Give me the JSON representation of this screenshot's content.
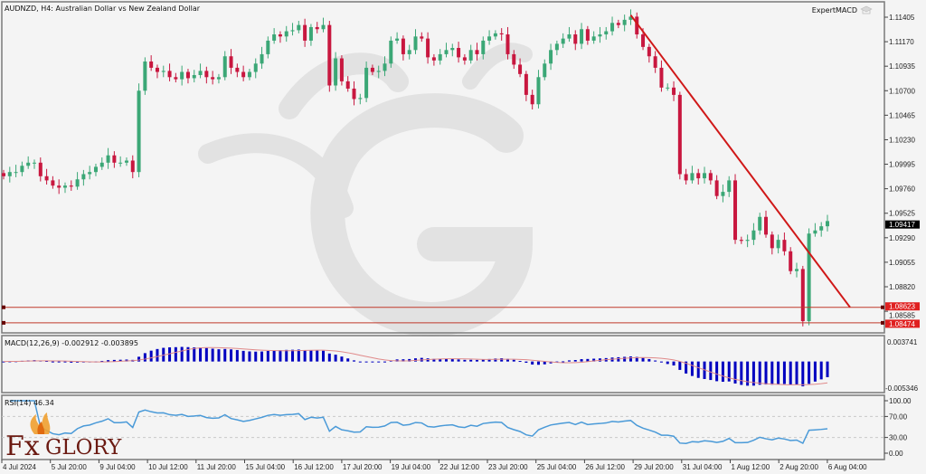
{
  "window": {
    "title": "AUDNZD, H4:  Australian Dollar vs New Zealand Dollar",
    "expert_label": "ExpertMACD",
    "expert_icon": "graduation-cap-icon"
  },
  "logo": {
    "text_fx": "Fx",
    "text_glory": "GLORY",
    "icon": "flame-icon"
  },
  "colors": {
    "background": "#f4f4f4",
    "bull": "#3ba776",
    "bear": "#c8173f",
    "trendline": "#d01818",
    "level_line": "#c0392b",
    "macd_histogram": "#0000c0",
    "macd_signal": "#e08a8a",
    "rsi_line": "#4a9ad8",
    "current_price_tag": "#000000",
    "level_tag": "#e02020"
  },
  "chart_data": [
    {
      "type": "candlestick",
      "symbol": "AUDNZD",
      "timeframe": "H4",
      "close": [
        1.0988,
        1.0992,
        1.0992,
        1.0998,
        1.1001,
        1.1001,
        1.0988,
        1.0984,
        1.0979,
        1.0977,
        1.0979,
        1.0978,
        1.0985,
        1.099,
        1.0992,
        1.0997,
        1.1001,
        1.1008,
        1.1001,
        1.1001,
        1.1003,
        1.0992,
        1.107,
        1.1098,
        1.1092,
        1.1088,
        1.1089,
        1.1083,
        1.1081,
        1.1088,
        1.1082,
        1.1085,
        1.1089,
        1.1083,
        1.1081,
        1.1083,
        1.1103,
        1.1092,
        1.1088,
        1.1083,
        1.1088,
        1.1096,
        1.1105,
        1.1118,
        1.1124,
        1.1122,
        1.1127,
        1.1128,
        1.1133,
        1.1118,
        1.1131,
        1.1129,
        1.1133,
        1.1075,
        1.1101,
        1.1079,
        1.1072,
        1.1062,
        1.1063,
        1.1092,
        1.1088,
        1.1089,
        1.1096,
        1.1118,
        1.112,
        1.1105,
        1.1109,
        1.1122,
        1.112,
        1.1102,
        1.1099,
        1.1105,
        1.1109,
        1.1111,
        1.1102,
        1.1099,
        1.1109,
        1.1105,
        1.1118,
        1.1122,
        1.1125,
        1.1124,
        1.1105,
        1.1095,
        1.1086,
        1.1066,
        1.1057,
        1.1083,
        1.1096,
        1.1109,
        1.1115,
        1.112,
        1.1124,
        1.1115,
        1.1129,
        1.1118,
        1.1122,
        1.1124,
        1.1127,
        1.1135,
        1.1133,
        1.1138,
        1.1141,
        1.1124,
        1.1112,
        1.1103,
        1.1092,
        1.1073,
        1.1073,
        1.1066,
        1.099,
        1.0984,
        1.0991,
        1.0986,
        1.0991,
        1.0984,
        1.0969,
        1.0973,
        1.0984,
        1.0927,
        1.0926,
        1.0927,
        1.0936,
        1.0949,
        1.0932,
        1.0919,
        1.0927,
        1.0916,
        1.0897,
        1.0899,
        1.0849,
        1.0933,
        1.0936,
        1.094,
        1.0945
      ],
      "price_axis_ticks": [
        "1.11405",
        "1.11170",
        "1.10935",
        "1.10700",
        "1.10465",
        "1.10230",
        "1.09995",
        "1.09760",
        "1.09525",
        "1.09290",
        "1.09055",
        "1.08820",
        "1.08585"
      ],
      "price_range": [
        1.083,
        1.1157
      ],
      "current_price": "1.09417",
      "levels": [
        {
          "price": "1.08623"
        },
        {
          "price": "1.08474"
        }
      ],
      "trendline": {
        "from_price": 1.11425,
        "to_price": 1.08623
      },
      "time_axis_ticks": [
        "4 Jul 2024",
        "5 Jul 20:00",
        "9 Jul 04:00",
        "10 Jul 12:00",
        "11 Jul 20:00",
        "15 Jul 04:00",
        "16 Jul 12:00",
        "17 Jul 20:00",
        "19 Jul 04:00",
        "22 Jul 12:00",
        "23 Jul 20:00",
        "25 Jul 04:00",
        "26 Jul 12:00",
        "29 Jul 20:00",
        "31 Jul 04:00",
        "1 Aug 12:00",
        "2 Aug 20:00",
        "6 Aug 04:00"
      ]
    },
    {
      "type": "bar",
      "indicator": "MACD",
      "label": "MACD(12,26,9) -0.002912 -0.003895",
      "params": [
        12,
        26,
        9
      ],
      "axis_ticks": [
        "0.003741",
        "-0.005346"
      ],
      "ylim": [
        -0.005346,
        0.003741
      ]
    },
    {
      "type": "line",
      "indicator": "RSI",
      "label": "RSI(14) 46.34",
      "period": 14,
      "axis_ticks": [
        "100.00",
        "70.00",
        "30.00",
        "0.00"
      ],
      "ylim": [
        0,
        100
      ],
      "levels": [
        70,
        30
      ]
    }
  ]
}
